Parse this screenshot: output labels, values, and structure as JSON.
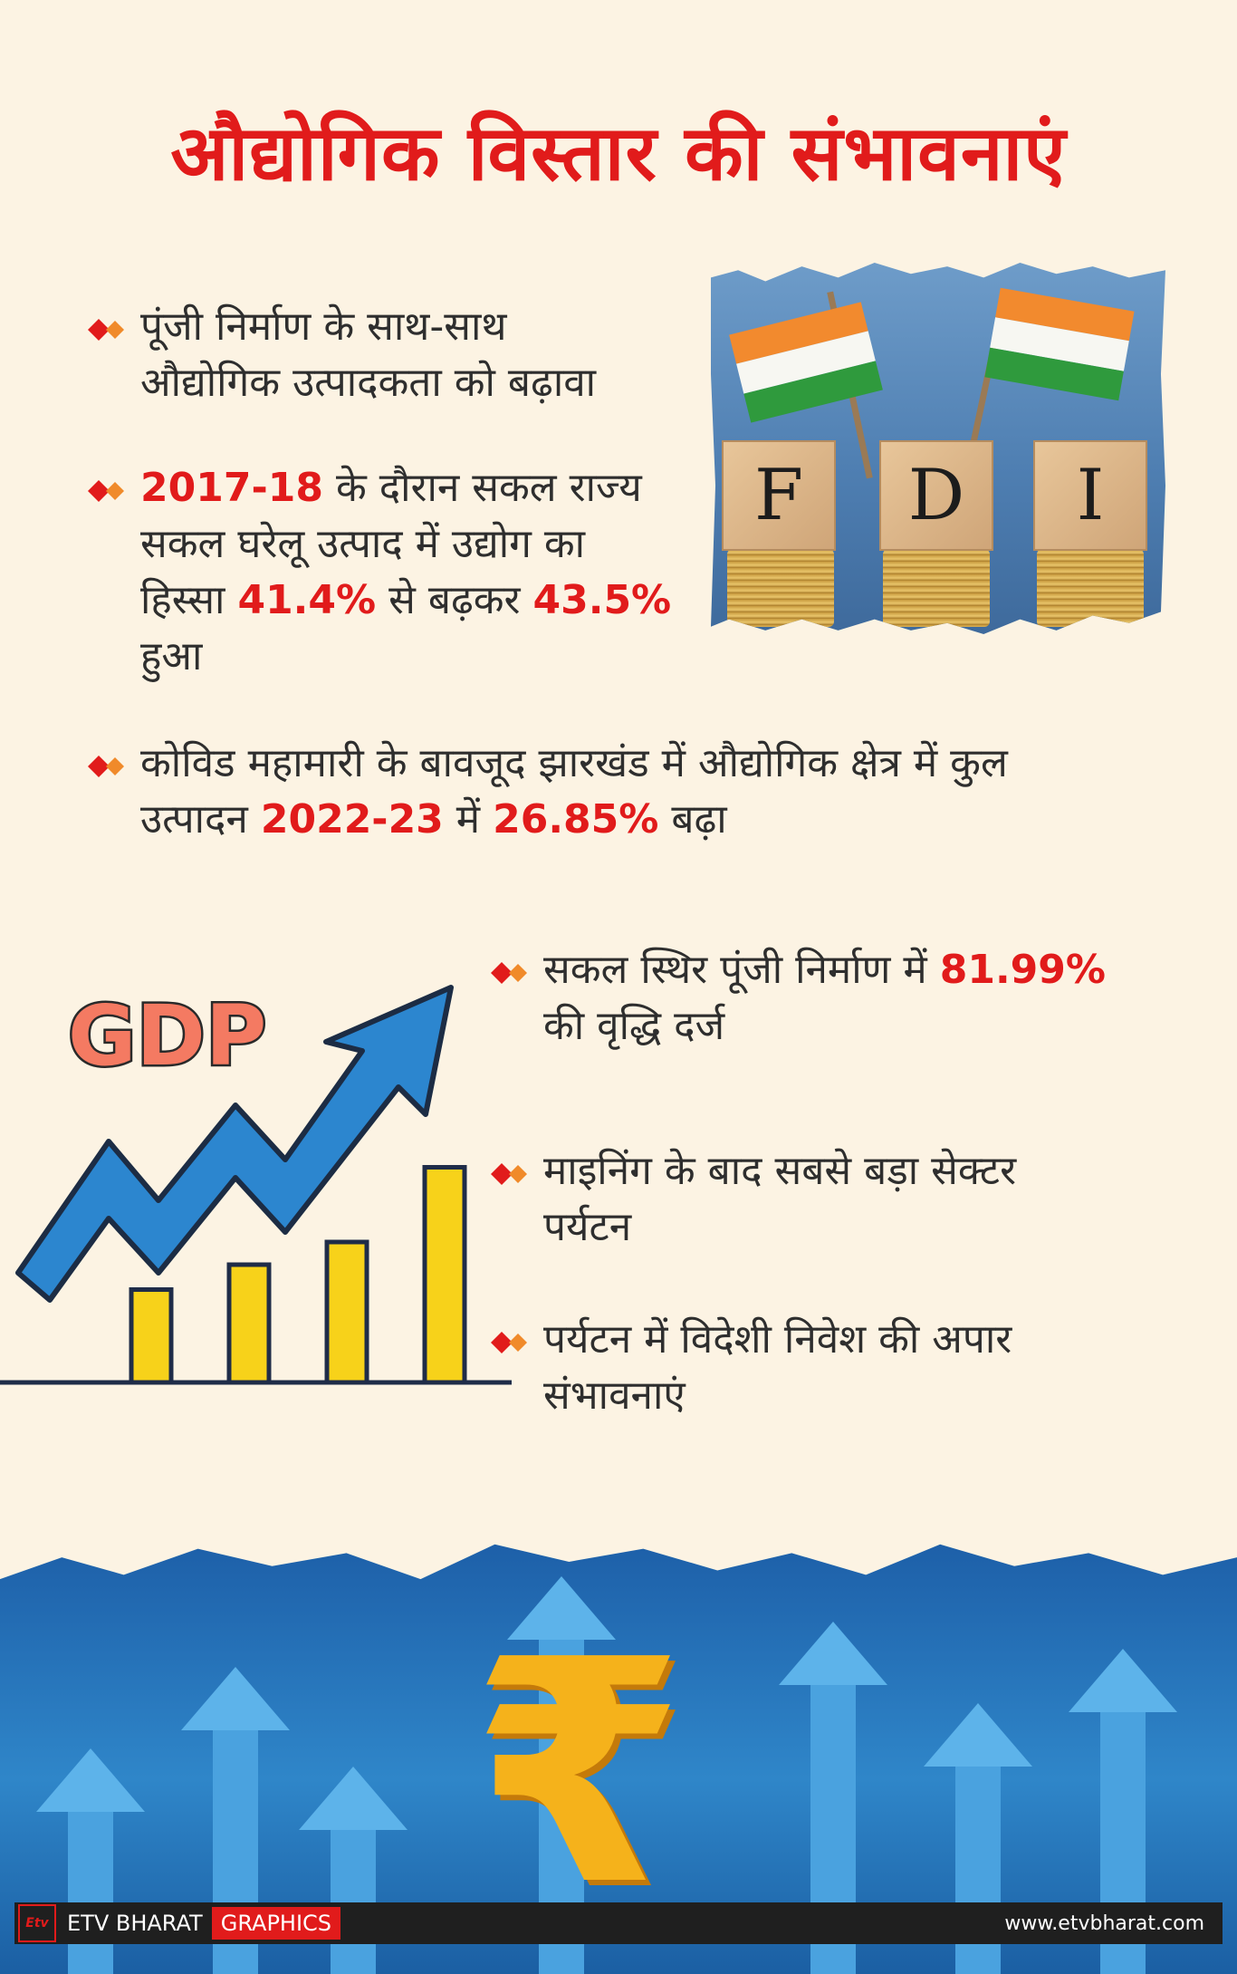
{
  "title": "औद्योगिक विस्तार की संभावनाएं",
  "bullets_top": [
    {
      "parts": [
        "पूंजी निर्माण के साथ-साथ",
        "औद्योगिक उत्पादकता को बढ़ावा"
      ]
    },
    {
      "year": "2017-18",
      "text_a": " के दौरान सकल राज्य",
      "text_b": "सकल घरेलू उत्पाद में उद्योग का",
      "text_c": "हिस्सा ",
      "from": "41.4%",
      "text_d": " से बढ़कर ",
      "to": "43.5%",
      "text_e": "हुआ"
    },
    {
      "text_a": "कोविड महामारी के बावजूद झारखंड में औद्योगिक क्षेत्र में कुल",
      "text_b": "उत्पादन ",
      "year": "2022-23",
      "text_c": " में ",
      "pct": "26.85%",
      "text_d": " बढ़ा"
    }
  ],
  "bullets_right": [
    {
      "text_a": "सकल स्थिर पूंजी निर्माण में ",
      "pct": "81.99%",
      "text_b": "की वृद्धि दर्ज"
    },
    {
      "text_a": "माइनिंग के बाद सबसे बड़ा सेक्टर",
      "text_b": "पर्यटन"
    },
    {
      "text_a": "पर्यटन में विदेशी निवेश की अपार",
      "text_b": "संभावनाएं"
    }
  ],
  "fdi": {
    "letters": [
      "F",
      "D",
      "I"
    ]
  },
  "gdp_label": "GDP",
  "gdp_bars": [
    0.41,
    0.52,
    0.62,
    0.95
  ],
  "rupee_symbol": "₹",
  "footer": {
    "logo": "Etv",
    "brand": "ETV BHARAT",
    "graphics": "GRAPHICS",
    "site": "www.etvbharat.com"
  },
  "colors": {
    "accent": "#e11b1b",
    "background": "#fcf3e3",
    "bar": "#f7d21a",
    "arrow": "#2c86cf"
  }
}
